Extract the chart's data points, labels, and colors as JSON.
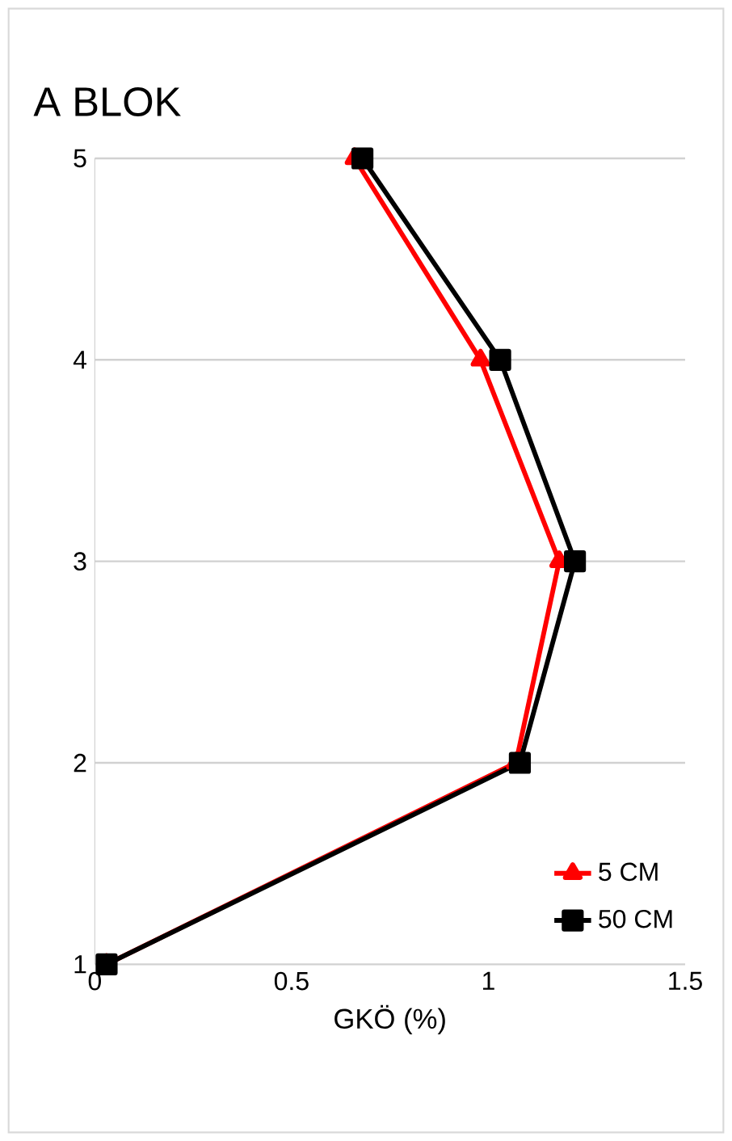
{
  "chart_data": {
    "type": "line",
    "title": "A BLOK",
    "xlabel": "GKÖ (%)",
    "series": [
      {
        "name": "5 CM",
        "color": "#ff0000",
        "marker": "triangle",
        "x": [
          0.03,
          1.07,
          1.18,
          0.98,
          0.66
        ],
        "values": [
          1,
          2,
          3,
          4,
          5
        ]
      },
      {
        "name": "50 CM",
        "color": "#000000",
        "marker": "square",
        "x": [
          0.03,
          1.08,
          1.22,
          1.03,
          0.68
        ],
        "values": [
          1,
          2,
          3,
          4,
          5
        ]
      }
    ],
    "xlim": [
      0,
      1.5
    ],
    "xticks": [
      0,
      0.5,
      1,
      1.5
    ],
    "ylim": [
      1,
      5
    ],
    "yticks": [
      1,
      2,
      3,
      4,
      5
    ],
    "grid": "y",
    "legend": "bottom right"
  }
}
